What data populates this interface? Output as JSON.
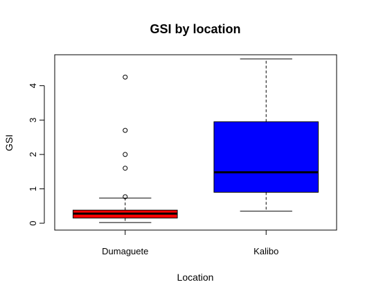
{
  "chart_data": {
    "type": "boxplot",
    "title": "GSI by location",
    "xlabel": "Location",
    "ylabel": "GSI",
    "categories": [
      "Dumaguete",
      "Kalibo"
    ],
    "ylim": [
      -0.2,
      4.9
    ],
    "yticks": [
      0,
      1,
      2,
      3,
      4
    ],
    "grid": false,
    "boxes": [
      {
        "name": "Dumaguete",
        "color": "#ff0000",
        "whisker_low": 0.02,
        "q1": 0.15,
        "median": 0.28,
        "q3": 0.38,
        "whisker_high": 0.73,
        "outliers": [
          0.77,
          1.6,
          2.0,
          2.7,
          4.25
        ]
      },
      {
        "name": "Kalibo",
        "color": "#0000ff",
        "whisker_low": 0.35,
        "q1": 0.9,
        "median": 1.48,
        "q3": 2.95,
        "whisker_high": 4.78,
        "outliers": []
      }
    ]
  }
}
